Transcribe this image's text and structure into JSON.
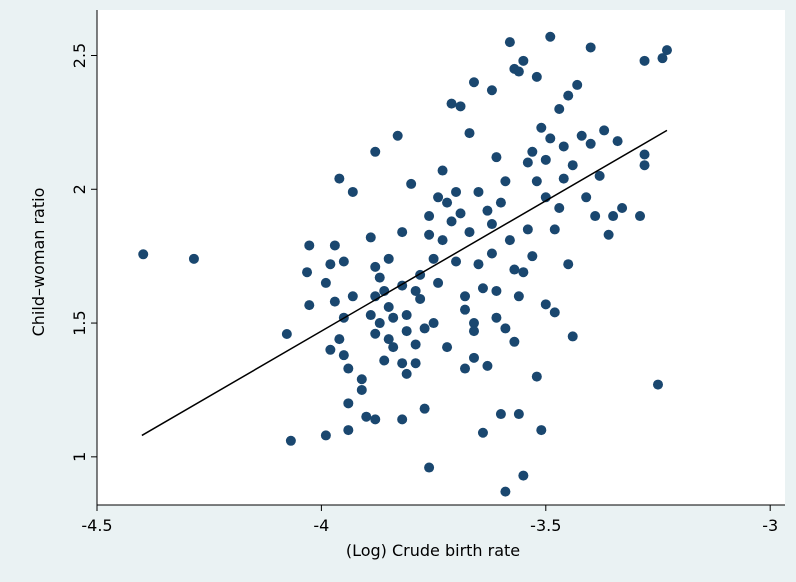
{
  "chart_data": {
    "type": "scatter",
    "x_label": "(Log) Crude birth rate",
    "y_label": "Child–woman ratio",
    "color": "#1a476f",
    "xlim": [
      -4.5,
      -2.967
    ],
    "ylim": [
      0.82,
      2.67
    ],
    "xticks": [
      -4.5,
      -4,
      -3.5,
      -3
    ],
    "yticks": [
      1,
      1.5,
      2,
      2.5
    ],
    "x": [
      -4.397,
      -4.284,
      -4.068,
      -4.077,
      -4.027,
      -4.032,
      -4.027,
      -3.96,
      -3.93,
      -3.97,
      -3.98,
      -3.95,
      -3.99,
      -3.97,
      -3.95,
      -3.93,
      -3.98,
      -3.96,
      -3.95,
      -3.94,
      -3.94,
      -3.94,
      -3.99,
      -3.91,
      -3.91,
      -3.9,
      -3.88,
      -3.88,
      -3.89,
      -3.88,
      -3.87,
      -3.88,
      -3.89,
      -3.88,
      -3.87,
      -3.85,
      -3.86,
      -3.85,
      -3.84,
      -3.85,
      -3.86,
      -3.84,
      -3.83,
      -3.82,
      -3.82,
      -3.81,
      -3.81,
      -3.82,
      -3.81,
      -3.82,
      -3.8,
      -3.79,
      -3.79,
      -3.78,
      -3.78,
      -3.77,
      -3.77,
      -3.76,
      -3.76,
      -3.75,
      -3.75,
      -3.76,
      -3.74,
      -3.74,
      -3.73,
      -3.72,
      -3.73,
      -3.71,
      -3.7,
      -3.69,
      -3.69,
      -3.68,
      -3.68,
      -3.68,
      -3.67,
      -3.67,
      -3.66,
      -3.66,
      -3.66,
      -3.65,
      -3.65,
      -3.64,
      -3.64,
      -3.63,
      -3.62,
      -3.62,
      -3.61,
      -3.61,
      -3.6,
      -3.6,
      -3.59,
      -3.58,
      -3.58,
      -3.57,
      -3.57,
      -3.56,
      -3.56,
      -3.55,
      -3.55,
      -3.55,
      -3.54,
      -3.53,
      -3.52,
      -3.52,
      -3.51,
      -3.51,
      -3.5,
      -3.5,
      -3.49,
      -3.49,
      -3.48,
      -3.48,
      -3.47,
      -3.46,
      -3.45,
      -3.45,
      -3.44,
      -3.43,
      -3.42,
      -3.41,
      -3.4,
      -3.4,
      -3.39,
      -3.38,
      -3.37,
      -3.36,
      -3.35,
      -3.34,
      -3.33,
      -3.29,
      -3.28,
      -3.28,
      -3.28,
      -3.25,
      -3.24,
      -3.23,
      -3.59,
      -3.71,
      -3.72,
      -3.62,
      -3.63,
      -3.57,
      -3.54,
      -3.53,
      -3.52,
      -3.5,
      -3.46,
      -3.44,
      -3.47,
      -3.7,
      -3.66,
      -3.59,
      -3.61,
      -3.56,
      -3.79
    ],
    "values": [
      1.757,
      1.74,
      1.06,
      1.459,
      1.79,
      1.69,
      1.567,
      2.04,
      1.99,
      1.79,
      1.72,
      1.73,
      1.65,
      1.58,
      1.52,
      1.6,
      1.4,
      1.44,
      1.38,
      1.33,
      1.2,
      1.1,
      1.08,
      1.29,
      1.25,
      1.15,
      1.14,
      2.14,
      1.82,
      1.71,
      1.67,
      1.6,
      1.53,
      1.46,
      1.5,
      1.74,
      1.62,
      1.56,
      1.52,
      1.44,
      1.36,
      1.41,
      2.2,
      1.84,
      1.64,
      1.53,
      1.47,
      1.35,
      1.31,
      1.14,
      2.02,
      1.62,
      1.42,
      1.68,
      1.59,
      1.48,
      1.18,
      1.9,
      1.83,
      1.74,
      1.5,
      0.96,
      1.97,
      1.65,
      1.81,
      1.41,
      2.07,
      2.32,
      1.73,
      2.31,
      1.91,
      1.6,
      1.55,
      1.33,
      2.21,
      1.84,
      1.5,
      1.37,
      2.4,
      1.99,
      1.72,
      1.63,
      1.09,
      1.34,
      2.37,
      1.87,
      2.12,
      1.52,
      1.16,
      1.95,
      2.03,
      1.81,
      2.55,
      2.45,
      1.43,
      2.44,
      1.16,
      2.48,
      1.69,
      0.93,
      2.1,
      1.75,
      2.42,
      1.3,
      1.1,
      2.23,
      1.97,
      1.57,
      2.57,
      2.19,
      1.85,
      1.54,
      2.3,
      2.04,
      2.35,
      1.72,
      1.45,
      2.39,
      2.2,
      1.97,
      2.53,
      2.17,
      1.9,
      2.05,
      2.22,
      1.83,
      1.9,
      2.18,
      1.93,
      1.9,
      2.13,
      2.09,
      2.48,
      1.27,
      2.49,
      2.52,
      0.87,
      1.88,
      1.95,
      1.76,
      1.92,
      1.7,
      1.85,
      2.14,
      2.03,
      2.11,
      2.16,
      2.09,
      1.93,
      1.99,
      1.47,
      1.48,
      1.62,
      1.6,
      1.35
    ],
    "fit": {
      "x": [
        -4.4,
        -3.23
      ],
      "values": [
        1.08,
        2.22
      ]
    }
  }
}
